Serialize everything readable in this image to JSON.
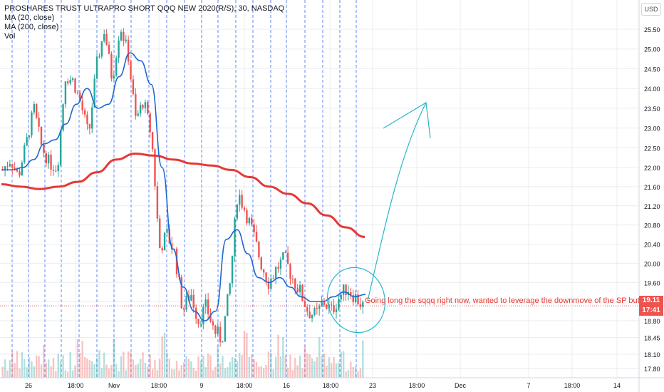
{
  "legend": {
    "symbol": "PROSHARES TRUST ULTRAPRO SHORT QQQ NEW 2020(R/S), 30, NASDAQ",
    "ma20": "MA (20, close)",
    "ma200": "MA (200, close)",
    "vol": "Vol"
  },
  "currency": "USD",
  "annotation": "Going long the sqqq right now, wanted to leverage the downmove of the SP but also",
  "price_tags": {
    "last_price": "19.11",
    "countdown": "17:41"
  },
  "colors": {
    "up": "#26a69a",
    "down": "#ef5350",
    "ma20": "#1e66d0",
    "ma200": "#e53935",
    "drawing": "#29b6c9",
    "session_line": "#2962ff",
    "grid": "#e9ecf1"
  },
  "chart_data": {
    "type": "candlestick",
    "title": "PROSHARES TRUST ULTRAPRO SHORT QQQ NEW 2020(R/S), 30, NASDAQ",
    "y_axis": {
      "ticks": [
        25.5,
        25.0,
        24.5,
        24.0,
        23.5,
        23.0,
        22.5,
        22.0,
        21.6,
        21.2,
        20.8,
        20.4,
        20.0,
        19.6,
        19.2,
        18.8,
        18.45,
        18.1,
        17.8
      ],
      "labels": [
        "25.50",
        "25.00",
        "24.50",
        "24.00",
        "23.50",
        "23.00",
        "22.50",
        "22.00",
        "21.60",
        "21.20",
        "20.80",
        "20.40",
        "20.00",
        "19.60",
        "19.20",
        "18.80",
        "18.45",
        "18.10",
        "17.80"
      ],
      "ylim": [
        17.7,
        25.9
      ]
    },
    "x_axis": {
      "labels": [
        "26",
        "18:00",
        "Nov",
        "18:00",
        "9",
        "18:00",
        "16",
        "18:00",
        "23",
        "18:00",
        "Dec",
        "7",
        "18:00",
        "14"
      ]
    },
    "ohlc_path": [
      21.95,
      22.2,
      21.8,
      22.6,
      23.5,
      22.5,
      22.1,
      22.0,
      24.3,
      24.2,
      23.6,
      22.8,
      24.6,
      25.5,
      24.2,
      25.6,
      24.9,
      23.2,
      23.7,
      22.8,
      20.3,
      20.6,
      20.2,
      19.0,
      19.4,
      18.8,
      19.1,
      18.6,
      18.4,
      19.5,
      21.5,
      21.1,
      20.6,
      20.0,
      19.6,
      19.9,
      20.1,
      19.7,
      19.4,
      19.0,
      18.9,
      19.2,
      19.0,
      19.3,
      19.5,
      19.3,
      19.11
    ],
    "series": [
      {
        "name": "MA (20, close)",
        "values": [
          21.95,
          21.95,
          22.0,
          22.2,
          22.6,
          22.7,
          23.1,
          23.6,
          24.0,
          23.5,
          23.6,
          24.3,
          24.9,
          24.7,
          24.1,
          22.0,
          20.3,
          19.5,
          19.0,
          18.8,
          19.0,
          20.5,
          20.7,
          20.2,
          19.7,
          19.6,
          19.7,
          19.5,
          19.3,
          19.2,
          19.2,
          19.3,
          19.4,
          19.3,
          19.35
        ]
      },
      {
        "name": "MA (200, close)",
        "values": [
          21.65,
          21.6,
          21.55,
          21.6,
          21.7,
          21.9,
          22.2,
          22.35,
          22.3,
          22.2,
          22.1,
          22.05,
          21.95,
          21.8,
          21.6,
          21.45,
          21.25,
          21.0,
          20.75,
          20.55
        ]
      }
    ],
    "volume": "bars shown along the bottom edge, values not labeled",
    "legend": "top-left",
    "grid": true
  }
}
